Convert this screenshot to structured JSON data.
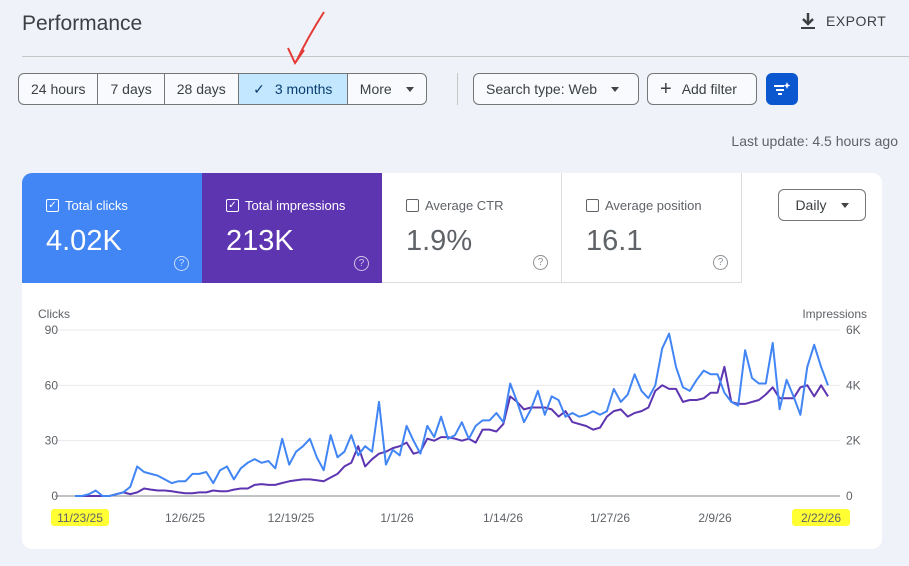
{
  "header": {
    "title": "Performance",
    "export_label": "EXPORT",
    "export_icon": "download-icon"
  },
  "date_range": {
    "options": [
      "24 hours",
      "7 days",
      "28 days",
      "3 months",
      "More"
    ],
    "selected": "3 months"
  },
  "filters": {
    "search_type": "Search type: Web",
    "add_filter": "Add filter",
    "ai_filter_icon": "filter-sparkle-icon"
  },
  "last_update": "Last update: 4.5 hours ago",
  "metrics": [
    {
      "label": "Total clicks",
      "value": "4.02K",
      "checked": true,
      "color": "#4285f4"
    },
    {
      "label": "Total impressions",
      "value": "213K",
      "checked": true,
      "color": "#5e35b1"
    },
    {
      "label": "Average CTR",
      "value": "1.9%",
      "checked": false
    },
    {
      "label": "Average position",
      "value": "16.1",
      "checked": false
    }
  ],
  "granularity": "Daily",
  "annotations": {
    "arrow_color": "#e53935",
    "highlight_color": "#ffff33"
  },
  "chart_data": {
    "type": "line",
    "left_axis": {
      "label": "Clicks",
      "ticks": [
        "0",
        "30",
        "60",
        "90"
      ],
      "range": [
        0,
        90
      ]
    },
    "right_axis": {
      "label": "Impressions",
      "ticks": [
        "0",
        "2K",
        "4K",
        "6K"
      ],
      "range": [
        0,
        6000
      ]
    },
    "x_ticks": [
      "11/23/25",
      "12/6/25",
      "12/19/25",
      "1/1/26",
      "1/14/26",
      "1/27/26",
      "2/9/26",
      "2/22/26"
    ],
    "highlighted_ticks": [
      "11/23/25",
      "2/22/26"
    ],
    "grid": true,
    "series": [
      {
        "name": "Clicks",
        "axis": "left",
        "color": "#4285f4",
        "values": [
          0,
          0,
          1,
          3,
          0,
          0,
          1,
          2,
          5,
          16,
          13,
          12,
          11,
          9,
          7,
          8,
          8,
          12,
          12,
          13,
          7,
          14,
          16,
          9,
          15,
          18,
          20,
          18,
          19,
          15,
          31,
          17,
          24,
          27,
          31,
          21,
          14,
          33,
          21,
          24,
          33,
          22,
          27,
          24,
          51,
          17,
          25,
          22,
          38,
          30,
          23,
          38,
          32,
          43,
          31,
          33,
          40,
          31,
          38,
          41,
          41,
          45,
          40,
          61,
          51,
          40,
          47,
          57,
          44,
          54,
          52,
          43,
          45,
          43,
          44,
          46,
          44,
          46,
          58,
          51,
          55,
          66,
          57,
          53,
          60,
          80,
          88,
          70,
          59,
          57,
          63,
          68,
          66,
          66,
          56,
          51,
          49,
          79,
          64,
          61,
          61,
          83,
          47,
          63,
          54,
          44,
          70,
          82,
          70,
          60
        ]
      },
      {
        "name": "Impressions",
        "axis": "right",
        "color": "#5e35b1",
        "values": [
          0,
          0,
          0,
          0,
          0,
          0,
          70,
          130,
          70,
          130,
          270,
          230,
          200,
          200,
          170,
          130,
          100,
          100,
          130,
          130,
          200,
          170,
          170,
          230,
          270,
          270,
          400,
          430,
          400,
          400,
          470,
          530,
          570,
          600,
          600,
          570,
          530,
          670,
          800,
          1070,
          1200,
          1800,
          1070,
          1330,
          1530,
          1600,
          1730,
          1800,
          1930,
          1530,
          1600,
          2070,
          2000,
          2130,
          2130,
          2070,
          2000,
          2070,
          1930,
          2400,
          2400,
          2330,
          2600,
          3600,
          3400,
          3130,
          3200,
          3200,
          3200,
          3130,
          2870,
          3070,
          2670,
          2600,
          2530,
          2400,
          2470,
          2870,
          3070,
          3130,
          2870,
          3000,
          3070,
          3200,
          3800,
          4000,
          3870,
          3870,
          3400,
          3470,
          3470,
          3530,
          3730,
          3730,
          4670,
          3400,
          3330,
          3330,
          3400,
          3470,
          3670,
          3930,
          3530,
          3530,
          3530,
          3930,
          4000,
          3600,
          4000,
          3600
        ]
      }
    ]
  }
}
